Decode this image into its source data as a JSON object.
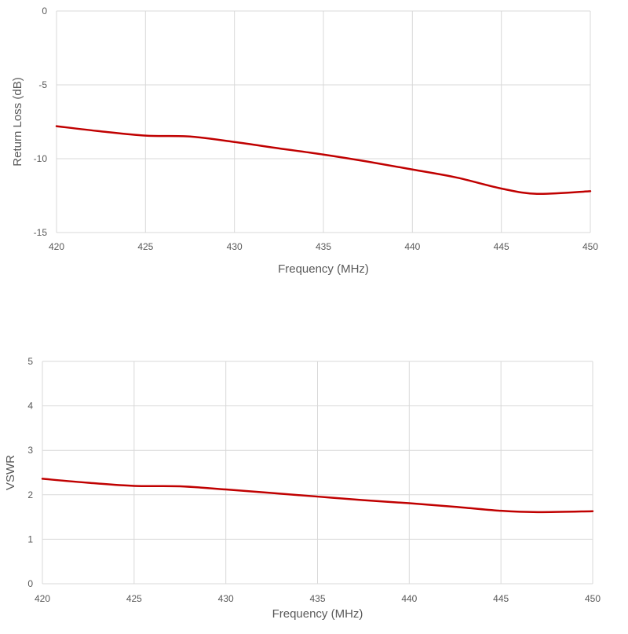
{
  "chart_data": [
    {
      "type": "line",
      "title": "",
      "xlabel": "Frequency (MHz)",
      "ylabel": "Return Loss (dB)",
      "xlim": [
        420,
        450
      ],
      "ylim": [
        -15,
        0
      ],
      "xticks": [
        420,
        425,
        430,
        435,
        440,
        445,
        450
      ],
      "yticks": [
        0,
        -5,
        -10,
        -15
      ],
      "grid": true,
      "line_color": "#c00000",
      "series": [
        {
          "x": [
            420,
            422.5,
            425,
            427.5,
            430,
            432.5,
            435,
            437.5,
            440,
            442.5,
            445,
            447,
            450
          ],
          "y": [
            -7.8,
            -8.15,
            -8.44,
            -8.5,
            -8.87,
            -9.3,
            -9.72,
            -10.2,
            -10.73,
            -11.28,
            -12.02,
            -12.38,
            -12.2
          ]
        }
      ]
    },
    {
      "type": "line",
      "title": "",
      "xlabel": "Frequency (MHz)",
      "ylabel": "VSWR",
      "xlim": [
        420,
        450
      ],
      "ylim": [
        0,
        5
      ],
      "xticks": [
        420,
        425,
        430,
        435,
        440,
        445,
        450
      ],
      "yticks": [
        0,
        1,
        2,
        3,
        4,
        5
      ],
      "grid": true,
      "line_color": "#c00000",
      "series": [
        {
          "x": [
            420,
            422.5,
            425,
            427.5,
            430,
            432.5,
            435,
            437.5,
            440,
            442.5,
            445,
            447,
            450
          ],
          "y": [
            2.36,
            2.27,
            2.2,
            2.19,
            2.12,
            2.04,
            1.96,
            1.88,
            1.81,
            1.73,
            1.64,
            1.61,
            1.63
          ]
        }
      ]
    }
  ]
}
